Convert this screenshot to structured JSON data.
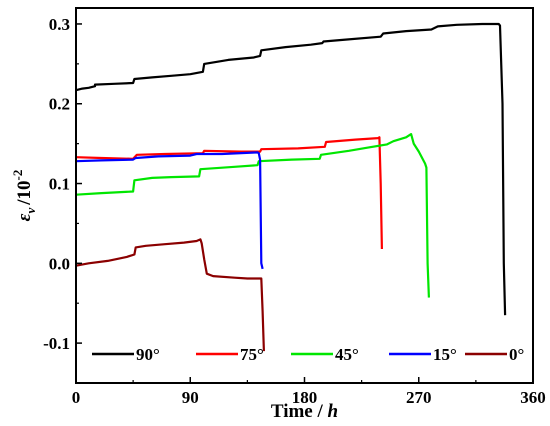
{
  "chart_data": {
    "type": "line",
    "xlabel": "Time / h",
    "xlabel_main": "Time / ",
    "xlabel_unit": "h",
    "ylabel_symbol": "ε",
    "ylabel_sub": "v",
    "ylabel_unit": "/10",
    "ylabel_exp": "-2",
    "xlim": [
      0,
      360
    ],
    "ylim": [
      -0.15,
      0.32
    ],
    "xticks": [
      0,
      90,
      180,
      270,
      360
    ],
    "yticks": [
      -0.1,
      0.0,
      0.1,
      0.2,
      0.3
    ],
    "xtick_labels": [
      "0",
      "90",
      "180",
      "270",
      "360"
    ],
    "ytick_labels": [
      "-0.1",
      "0.0",
      "0.1",
      "0.2",
      "0.3"
    ],
    "grid": false,
    "legend_position": "bottom inside",
    "series": [
      {
        "name": "90°",
        "color": "#000000",
        "points": [
          [
            0,
            0.217
          ],
          [
            5,
            0.219
          ],
          [
            10,
            0.22
          ],
          [
            15,
            0.222
          ],
          [
            15,
            0.224
          ],
          [
            30,
            0.225
          ],
          [
            45,
            0.226
          ],
          [
            46,
            0.231
          ],
          [
            60,
            0.233
          ],
          [
            75,
            0.235
          ],
          [
            90,
            0.237
          ],
          [
            100,
            0.24
          ],
          [
            101,
            0.25
          ],
          [
            120,
            0.255
          ],
          [
            140,
            0.258
          ],
          [
            145,
            0.26
          ],
          [
            146,
            0.267
          ],
          [
            165,
            0.271
          ],
          [
            185,
            0.274
          ],
          [
            194,
            0.276
          ],
          [
            195,
            0.278
          ],
          [
            210,
            0.28
          ],
          [
            240,
            0.284
          ],
          [
            242,
            0.288
          ],
          [
            260,
            0.291
          ],
          [
            280,
            0.293
          ],
          [
            285,
            0.297
          ],
          [
            300,
            0.299
          ],
          [
            320,
            0.3
          ],
          [
            333,
            0.3
          ],
          [
            334,
            0.298
          ],
          [
            336,
            0.2
          ],
          [
            337,
            0.0
          ],
          [
            338,
            -0.065
          ]
        ]
      },
      {
        "name": "75°",
        "color": "#ff0000",
        "points": [
          [
            0,
            0.133
          ],
          [
            20,
            0.132
          ],
          [
            45,
            0.131
          ],
          [
            48,
            0.136
          ],
          [
            70,
            0.137
          ],
          [
            100,
            0.138
          ],
          [
            101,
            0.141
          ],
          [
            130,
            0.14
          ],
          [
            145,
            0.14
          ],
          [
            146,
            0.143
          ],
          [
            175,
            0.144
          ],
          [
            196,
            0.146
          ],
          [
            197,
            0.152
          ],
          [
            220,
            0.155
          ],
          [
            238,
            0.157
          ],
          [
            239,
            0.158
          ],
          [
            240,
            0.1
          ],
          [
            241,
            0.018
          ]
        ]
      },
      {
        "name": "45°",
        "color": "#00e600",
        "points": [
          [
            0,
            0.086
          ],
          [
            20,
            0.088
          ],
          [
            45,
            0.09
          ],
          [
            46,
            0.104
          ],
          [
            60,
            0.107
          ],
          [
            75,
            0.108
          ],
          [
            97,
            0.109
          ],
          [
            98,
            0.118
          ],
          [
            125,
            0.121
          ],
          [
            143,
            0.123
          ],
          [
            144,
            0.128
          ],
          [
            170,
            0.13
          ],
          [
            192,
            0.131
          ],
          [
            193,
            0.136
          ],
          [
            215,
            0.141
          ],
          [
            230,
            0.145
          ],
          [
            245,
            0.149
          ],
          [
            250,
            0.153
          ],
          [
            260,
            0.158
          ],
          [
            264,
            0.162
          ],
          [
            266,
            0.15
          ],
          [
            270,
            0.14
          ],
          [
            275,
            0.125
          ],
          [
            276,
            0.12
          ],
          [
            277,
            0.0
          ],
          [
            278,
            -0.043
          ]
        ]
      },
      {
        "name": "15°",
        "color": "#0000ff",
        "points": [
          [
            0,
            0.128
          ],
          [
            20,
            0.129
          ],
          [
            45,
            0.13
          ],
          [
            47,
            0.132
          ],
          [
            65,
            0.134
          ],
          [
            90,
            0.135
          ],
          [
            95,
            0.137
          ],
          [
            115,
            0.137
          ],
          [
            143,
            0.139
          ],
          [
            144,
            0.138
          ],
          [
            145,
            0.13
          ],
          [
            146,
            0.0
          ],
          [
            147,
            -0.007
          ]
        ]
      },
      {
        "name": "0°",
        "color": "#8b0000",
        "points": [
          [
            0,
            -0.003
          ],
          [
            10,
            0.0
          ],
          [
            25,
            0.003
          ],
          [
            40,
            0.008
          ],
          [
            46,
            0.011
          ],
          [
            47,
            0.02
          ],
          [
            55,
            0.022
          ],
          [
            70,
            0.024
          ],
          [
            85,
            0.026
          ],
          [
            95,
            0.028
          ],
          [
            98,
            0.03
          ],
          [
            99,
            0.025
          ],
          [
            101,
            0.005
          ],
          [
            103,
            -0.013
          ],
          [
            108,
            -0.016
          ],
          [
            125,
            -0.018
          ],
          [
            135,
            -0.019
          ],
          [
            146,
            -0.019
          ],
          [
            147,
            -0.06
          ],
          [
            148,
            -0.11
          ]
        ]
      }
    ]
  }
}
